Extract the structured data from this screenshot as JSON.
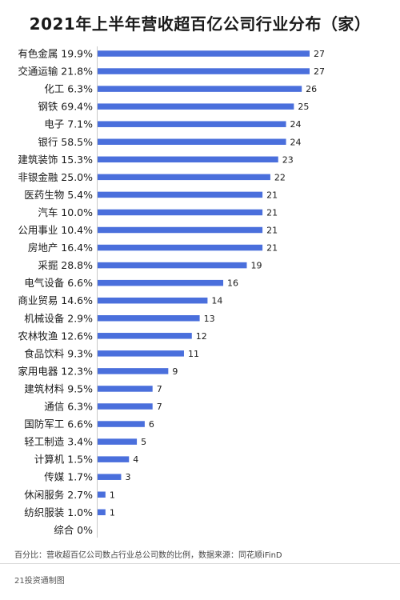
{
  "chart_data": {
    "type": "bar",
    "orientation": "horizontal",
    "title": "2021年上半年营收超百亿公司行业分布（家）",
    "categories": [
      "有色金属 19.9%",
      "交通运输 21.8%",
      "化工 6.3%",
      "钢铁 69.4%",
      "电子 7.1%",
      "银行 58.5%",
      "建筑装饰 15.3%",
      "非银金融 25.0%",
      "医药生物 5.4%",
      "汽车 10.0%",
      "公用事业 10.4%",
      "房地产 16.4%",
      "采掘 28.8%",
      "电气设备 6.6%",
      "商业贸易 14.6%",
      "机械设备 2.9%",
      "农林牧渔 12.6%",
      "食品饮料 9.3%",
      "家用电器 12.3%",
      "建筑材料 9.5%",
      "通信 6.3%",
      "国防军工 6.6%",
      "轻工制造 3.4%",
      "计算机 1.5%",
      "传媒 1.7%",
      "休闲服务 2.7%",
      "纺织服装 1.0%",
      "综合 0%"
    ],
    "values": [
      27,
      27,
      26,
      25,
      24,
      24,
      23,
      22,
      21,
      21,
      21,
      21,
      19,
      16,
      14,
      13,
      12,
      11,
      9,
      7,
      7,
      6,
      5,
      4,
      3,
      1,
      1,
      null
    ],
    "bar_color": "#4a6fdc",
    "xlim": [
      0,
      27
    ]
  },
  "footnote": "百分比：营收超百亿公司数占行业总公司数的比例，数据来源：同花顺iFinD",
  "credit": "21投资通制图"
}
